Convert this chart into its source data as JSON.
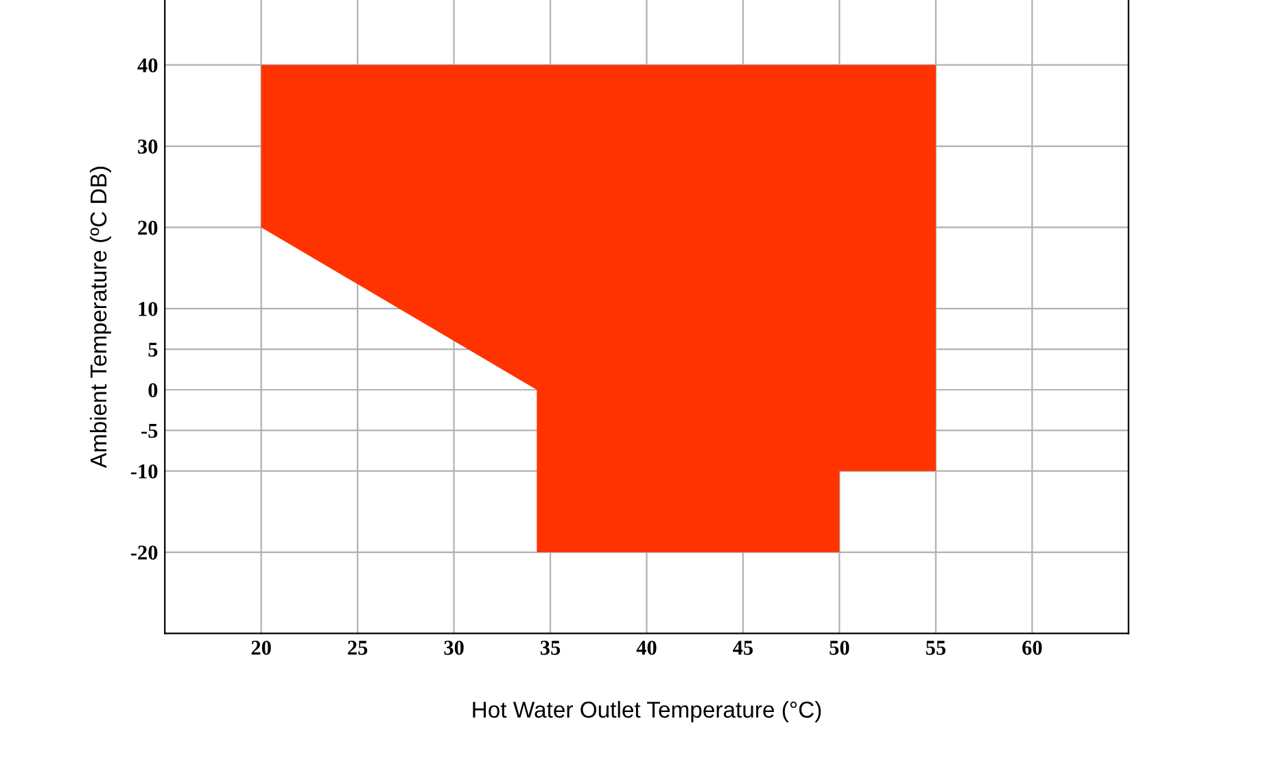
{
  "chart_data": {
    "type": "area",
    "xlabel": "Hot Water Outlet Temperature (°C)",
    "ylabel": "Ambient Temperature (ºC DB)",
    "x": [
      20,
      34.3,
      34.3,
      50,
      50,
      55,
      55,
      20
    ],
    "series": [
      {
        "color": "#ff3300",
        "values": [
          20,
          0,
          -20,
          -20,
          -10,
          -10,
          40,
          40
        ]
      }
    ],
    "xlim": [
      15,
      65
    ],
    "xticks": [
      20,
      25,
      30,
      35,
      40,
      45,
      50,
      55,
      60
    ],
    "ylim": [
      -30,
      48
    ],
    "yticks": [
      40,
      30,
      20,
      10,
      5,
      0,
      -5,
      -10,
      -20
    ],
    "grid": true
  }
}
